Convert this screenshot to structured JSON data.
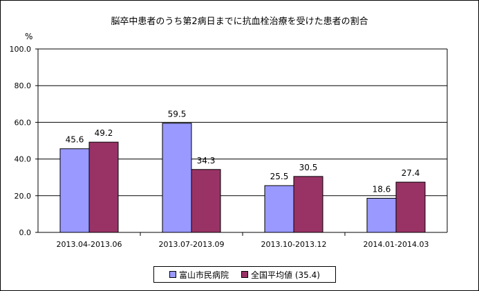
{
  "chart_data": {
    "type": "bar",
    "title": "脳卒中患者のうち第2病日までに抗血栓治療を受けた患者の割合",
    "ylabel": "%",
    "ylim": [
      0,
      100
    ],
    "yticks": [
      "0.0",
      "20.0",
      "40.0",
      "60.0",
      "80.0",
      "100.0"
    ],
    "categories": [
      "2013.04-2013.06",
      "2013.07-2013.09",
      "2013.10-2013.12",
      "2014.01-2014.03"
    ],
    "series": [
      {
        "name": "富山市民病院",
        "values": [
          45.6,
          59.5,
          25.5,
          18.6
        ],
        "labels": [
          "45.6",
          "59.5",
          "25.5",
          "18.6"
        ],
        "color": "#9999ff"
      },
      {
        "name": "全国平均値 (35.4)",
        "values": [
          49.2,
          34.3,
          30.5,
          27.4
        ],
        "labels": [
          "49.2",
          "34.3",
          "30.5",
          "27.4"
        ],
        "color": "#993366"
      }
    ],
    "grid": true,
    "legend": "bottom"
  }
}
